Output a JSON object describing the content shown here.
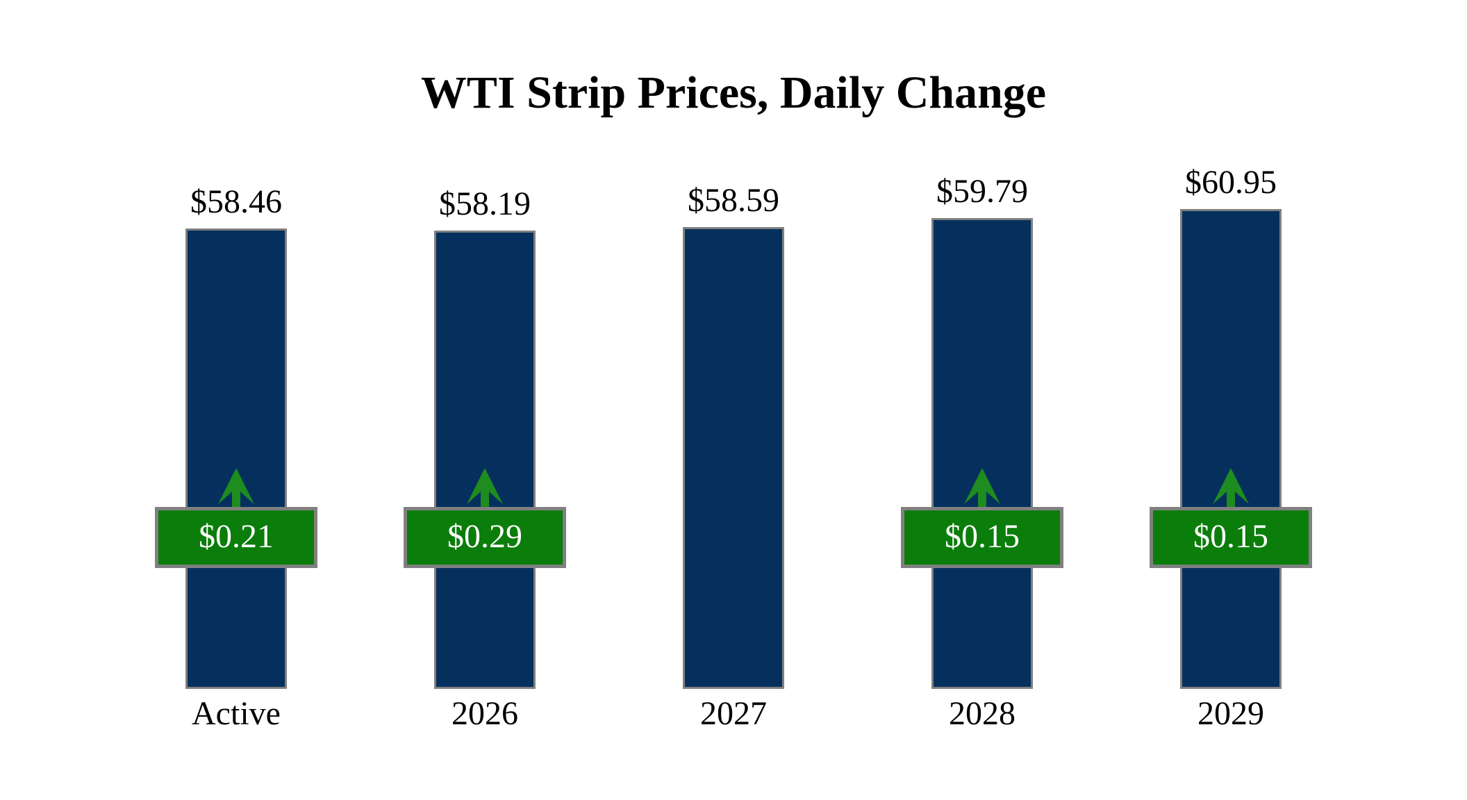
{
  "page": {
    "background": "#FFFFFF"
  },
  "colors": {
    "bar_fill": "#05305E",
    "bar_border": "#808080",
    "badge_fill": "#0B7D0B",
    "badge_border": "#808080",
    "badge_text": "#FFFFFF",
    "arrow": "#1E8C1E",
    "label_text": "#000000"
  },
  "chart_data": {
    "type": "bar",
    "title": "WTI Strip Prices, Daily Change",
    "categories": [
      "Active",
      "2026",
      "2027",
      "2028",
      "2029"
    ],
    "series": [
      {
        "name": "strip_price_usd_per_bbl",
        "values": [
          58.46,
          58.19,
          58.59,
          59.79,
          60.95
        ]
      },
      {
        "name": "daily_change_usd_per_bbl",
        "values": [
          0.21,
          0.29,
          null,
          0.15,
          0.15
        ]
      }
    ],
    "price_labels": [
      "$58.46",
      "$58.19",
      "$58.59",
      "$59.79",
      "$60.95"
    ],
    "change_labels": [
      "$0.21",
      "$0.29",
      null,
      "$0.15",
      "$0.15"
    ],
    "change_directions": [
      "up",
      "up",
      null,
      "up",
      "up"
    ],
    "ylim": [
      0,
      62
    ],
    "grid": false,
    "legend": "none",
    "xlabel": "",
    "ylabel": ""
  }
}
